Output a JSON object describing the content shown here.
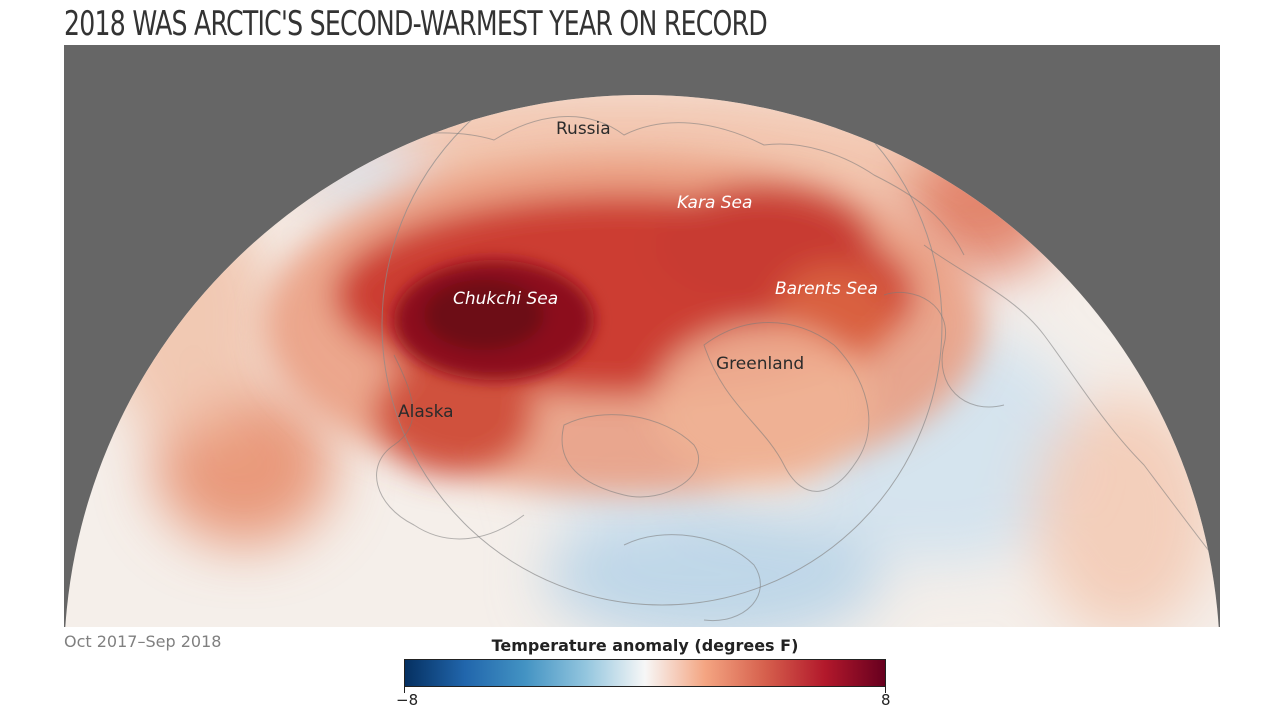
{
  "title": "2018 WAS ARCTIC'S SECOND-WARMEST YEAR ON RECORD",
  "period": "Oct 2017–Sep 2018",
  "labels": {
    "russia": "Russia",
    "kara_sea": "Kara Sea",
    "chukchi_sea": "Chukchi Sea",
    "barents_sea": "Barents Sea",
    "greenland": "Greenland",
    "alaska": "Alaska"
  },
  "legend": {
    "title": "Temperature anomaly (degrees F)",
    "min": -8,
    "max": 8,
    "min_label": "−8",
    "max_label": "8",
    "colors": [
      "#053061",
      "#2166ac",
      "#4393c3",
      "#92c5de",
      "#f7f7f7",
      "#f4a582",
      "#d6604d",
      "#b2182b",
      "#67001f"
    ]
  },
  "colors": {
    "background": "#666666",
    "ocean_base": "#f6f0ec",
    "strong_warm": "#a01422",
    "moderate_warm": "#e89575",
    "cool": "#c2d8ea"
  }
}
